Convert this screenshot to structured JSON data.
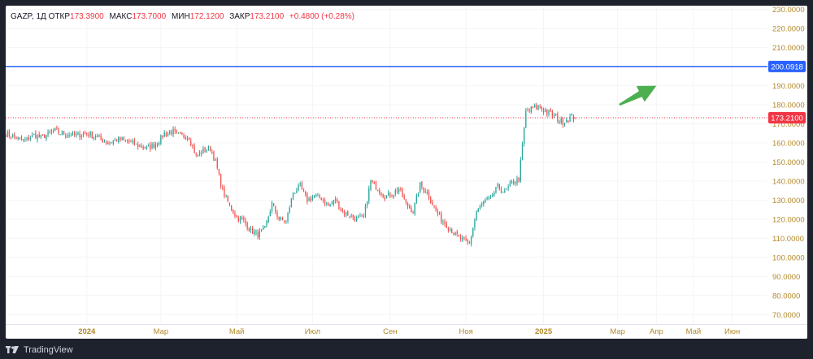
{
  "legend": {
    "symbol": "GAZP",
    "interval": "1Д",
    "open_label": "ОТКР",
    "open": "173.3900",
    "high_label": "МАКС",
    "high": "173.7000",
    "low_label": "МИН",
    "low": "172.1200",
    "close_label": "ЗАКР",
    "close": "173.2100",
    "change": "+0.4800 (+0.28%)"
  },
  "footer": {
    "brand": "TradingView"
  },
  "colors": {
    "up": "#26a69a",
    "down": "#ef5350",
    "level_line": "#2962ff",
    "price_line": "#f23645",
    "arrow": "#4caf50",
    "axis_text": "#b2892a"
  },
  "chart_data": {
    "type": "candlestick",
    "title": "",
    "y_axis": {
      "position": "right",
      "ylim": [
        65,
        232
      ],
      "ticks": [
        "230.0000",
        "220.0000",
        "210.0000",
        "200.0000",
        "190.0000",
        "180.0000",
        "170.0000",
        "160.0000",
        "150.0000",
        "140.0000",
        "130.0000",
        "120.0000",
        "110.0000",
        "100.0000",
        "90.0000",
        "80.0000",
        "70.0000"
      ]
    },
    "x_axis": {
      "labels": [
        {
          "text": "2024",
          "bold": true,
          "index": 66
        },
        {
          "text": "Мар",
          "bold": false,
          "index": 108
        },
        {
          "text": "Май",
          "bold": false,
          "index": 151
        },
        {
          "text": "Июл",
          "bold": false,
          "index": 194
        },
        {
          "text": "Сен",
          "bold": false,
          "index": 238
        },
        {
          "text": "Ноя",
          "bold": false,
          "index": 281
        },
        {
          "text": "2025",
          "bold": true,
          "index": 325
        },
        {
          "text": "Мар",
          "bold": false,
          "index": 367
        },
        {
          "text": "Апр",
          "bold": false,
          "index": 389
        },
        {
          "text": "Май",
          "bold": false,
          "index": 410
        },
        {
          "text": "Июн",
          "bold": false,
          "index": 432
        }
      ],
      "first_index": 20,
      "last_index": 452
    },
    "horizontal_line": {
      "value": "200.0918"
    },
    "last_price": {
      "value": "173.2100"
    },
    "arrow": {
      "from": [
        368,
        180
      ],
      "to": [
        389,
        190
      ]
    },
    "anchors": [
      [
        20,
        165
      ],
      [
        25,
        163
      ],
      [
        30,
        161
      ],
      [
        36,
        164
      ],
      [
        40,
        163
      ],
      [
        48,
        166
      ],
      [
        52,
        165
      ],
      [
        60,
        164
      ],
      [
        66,
        165
      ],
      [
        72,
        163
      ],
      [
        78,
        160
      ],
      [
        84,
        162
      ],
      [
        88,
        161
      ],
      [
        94,
        159
      ],
      [
        100,
        157
      ],
      [
        106,
        160
      ],
      [
        110,
        165
      ],
      [
        114,
        166
      ],
      [
        118,
        164
      ],
      [
        124,
        163
      ],
      [
        128,
        153
      ],
      [
        132,
        156
      ],
      [
        136,
        157
      ],
      [
        139,
        150
      ],
      [
        143,
        135
      ],
      [
        147,
        127
      ],
      [
        151,
        121
      ],
      [
        155,
        119
      ],
      [
        159,
        114
      ],
      [
        163,
        112
      ],
      [
        167,
        115
      ],
      [
        171,
        128
      ],
      [
        175,
        120
      ],
      [
        179,
        119
      ],
      [
        183,
        134
      ],
      [
        187,
        137
      ],
      [
        191,
        130
      ],
      [
        195,
        132
      ],
      [
        199,
        131
      ],
      [
        203,
        127
      ],
      [
        207,
        130
      ],
      [
        211,
        124
      ],
      [
        215,
        122
      ],
      [
        219,
        120
      ],
      [
        223,
        121
      ],
      [
        227,
        140
      ],
      [
        231,
        136
      ],
      [
        235,
        132
      ],
      [
        239,
        133
      ],
      [
        243,
        136
      ],
      [
        247,
        128
      ],
      [
        251,
        124
      ],
      [
        255,
        138
      ],
      [
        259,
        134
      ],
      [
        263,
        126
      ],
      [
        267,
        120
      ],
      [
        271,
        116
      ],
      [
        275,
        112
      ],
      [
        279,
        109
      ],
      [
        283,
        107
      ],
      [
        287,
        124
      ],
      [
        291,
        129
      ],
      [
        295,
        131
      ],
      [
        299,
        137
      ],
      [
        303,
        134
      ],
      [
        307,
        139
      ],
      [
        311,
        141
      ],
      [
        315,
        176
      ],
      [
        319,
        178
      ],
      [
        323,
        179
      ],
      [
        327,
        176
      ],
      [
        331,
        174
      ],
      [
        335,
        171
      ],
      [
        339,
        173
      ],
      [
        343,
        173.2
      ]
    ]
  }
}
